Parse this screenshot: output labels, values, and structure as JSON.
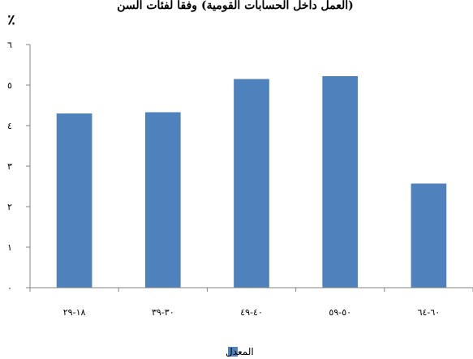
{
  "chart_data": {
    "type": "bar",
    "title": "(العمل داخل الحسابات القومية) وفقا لفئات السن",
    "unit": "٪",
    "categories": [
      "١٨-٢٩",
      "٣٠-٣٩",
      "٤٠-٤٩",
      "٥٠-٥٩",
      "٦٠-٦٤"
    ],
    "series": [
      {
        "name": "المعدل",
        "values": [
          4.3,
          4.33,
          5.15,
          5.22,
          2.57
        ],
        "color": "#4f81bd"
      }
    ],
    "ylim": [
      0,
      6
    ],
    "y_ticks": [
      {
        "value": 0,
        "label": "٠"
      },
      {
        "value": 1,
        "label": "١"
      },
      {
        "value": 2,
        "label": "٢"
      },
      {
        "value": 3,
        "label": "٣"
      },
      {
        "value": 4,
        "label": "٤"
      },
      {
        "value": 5,
        "label": "٥"
      },
      {
        "value": 6,
        "label": "٦"
      }
    ],
    "grid": false,
    "legend_position": "bottom"
  }
}
